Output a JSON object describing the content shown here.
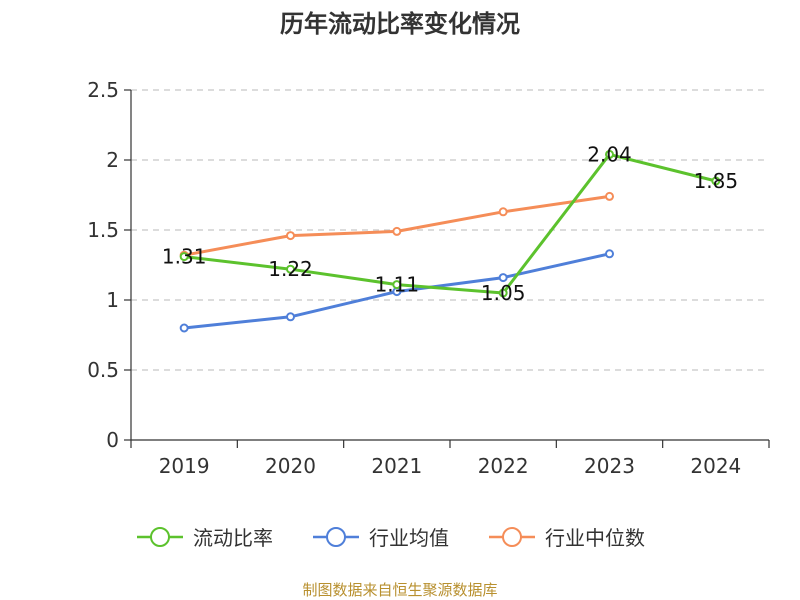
{
  "chart_data": {
    "type": "line",
    "title": "历年流动比率变化情况",
    "categories": [
      "2019",
      "2020",
      "2021",
      "2022",
      "2023",
      "2024"
    ],
    "yticks": [
      "0",
      "0.5",
      "1",
      "1.5",
      "2",
      "2.5"
    ],
    "ylim": [
      0,
      2.5
    ],
    "grid": true,
    "legend_position": "bottom-center",
    "series": [
      {
        "name": "流动比率",
        "color": "#5cc22d",
        "values": [
          1.31,
          1.22,
          1.11,
          1.05,
          2.04,
          1.85
        ],
        "labels": [
          "1.31",
          "1.22",
          "1.11",
          "1.05",
          "2.04",
          "1.85"
        ],
        "show_labels": true
      },
      {
        "name": "行业均值",
        "color": "#4f7fd9",
        "values": [
          0.8,
          0.88,
          1.06,
          1.16,
          1.33,
          null
        ],
        "show_labels": false
      },
      {
        "name": "行业中位数",
        "color": "#f58d58",
        "values": [
          1.32,
          1.46,
          1.49,
          1.63,
          1.74,
          null
        ],
        "show_labels": false
      }
    ],
    "source": "制图数据来自恒生聚源数据库"
  }
}
